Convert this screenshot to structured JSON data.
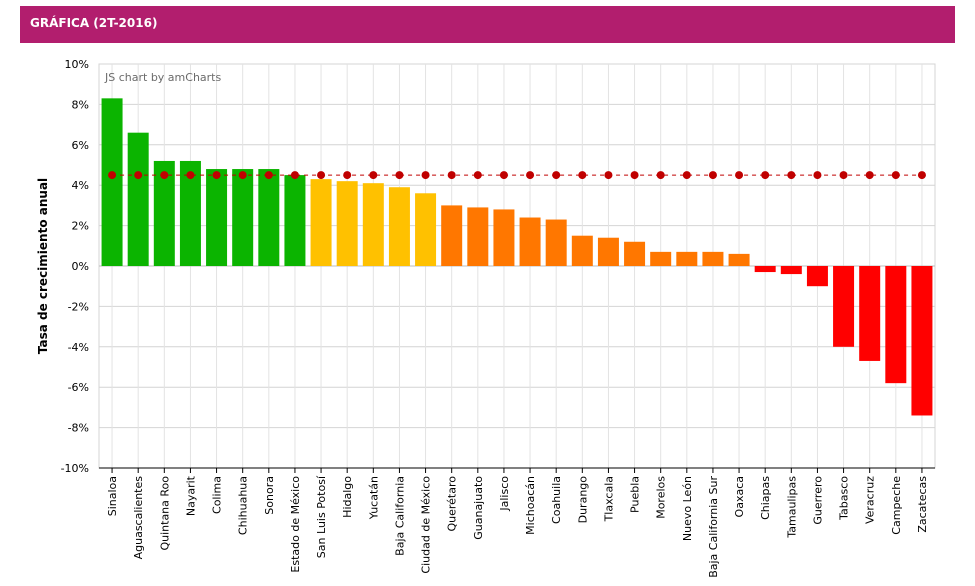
{
  "header": {
    "title": "GRÁFICA (2T-2016)"
  },
  "colors": {
    "header_bg": "#b21e6e",
    "green": "#0bb400",
    "yellow": "#ffc100",
    "orange": "#ff7700",
    "red": "#ff0000",
    "marker": "#c00000"
  },
  "chart_data": {
    "type": "bar",
    "credit": "JS chart by amCharts",
    "ylabel": "Tasa de crecimiento anual",
    "ylim": [
      -10,
      10
    ],
    "y_ticks": [
      "10%",
      "8%",
      "6%",
      "4%",
      "2%",
      "0%",
      "-2%",
      "-4%",
      "-6%",
      "-8%",
      "-10%"
    ],
    "y_tick_values": [
      10,
      8,
      6,
      4,
      2,
      0,
      -2,
      -4,
      -6,
      -8,
      -10
    ],
    "grid": true,
    "categories": [
      "Sinaloa",
      "Aguascalientes",
      "Quintana Roo",
      "Nayarit",
      "Colima",
      "Chihuahua",
      "Sonora",
      "Estado de México",
      "San Luis Potosí",
      "Hidalgo",
      "Yucatán",
      "Baja California",
      "Ciudad de México",
      "Querétaro",
      "Guanajuato",
      "Jalisco",
      "Michoacán",
      "Coahuila",
      "Durango",
      "Tlaxcala",
      "Puebla",
      "Morelos",
      "Nuevo León",
      "Baja California Sur",
      "Oaxaca",
      "Chiapas",
      "Tamaulipas",
      "Guerrero",
      "Tabasco",
      "Veracruz",
      "Campeche",
      "Zacatecas"
    ],
    "series": [
      {
        "type": "bar",
        "values": [
          8.3,
          6.6,
          5.2,
          5.2,
          4.8,
          4.8,
          4.8,
          4.5,
          4.3,
          4.2,
          4.1,
          3.9,
          3.6,
          3.0,
          2.9,
          2.8,
          2.4,
          2.3,
          1.5,
          1.4,
          1.2,
          0.7,
          0.7,
          0.7,
          0.6,
          -0.3,
          -0.4,
          -1.0,
          -4.0,
          -4.7,
          -5.8,
          -7.4
        ],
        "color_groups": [
          "green",
          "green",
          "green",
          "green",
          "green",
          "green",
          "green",
          "green",
          "yellow",
          "yellow",
          "yellow",
          "yellow",
          "yellow",
          "orange",
          "orange",
          "orange",
          "orange",
          "orange",
          "orange",
          "orange",
          "orange",
          "orange",
          "orange",
          "orange",
          "orange",
          "red",
          "red",
          "red",
          "red",
          "red",
          "red",
          "red"
        ]
      },
      {
        "type": "line",
        "style": "dashed-with-dots",
        "color": "#c00000",
        "values": [
          4.5,
          4.5,
          4.5,
          4.5,
          4.5,
          4.5,
          4.5,
          4.5,
          4.5,
          4.5,
          4.5,
          4.5,
          4.5,
          4.5,
          4.5,
          4.5,
          4.5,
          4.5,
          4.5,
          4.5,
          4.5,
          4.5,
          4.5,
          4.5,
          4.5,
          4.5,
          4.5,
          4.5,
          4.5,
          4.5,
          4.5,
          4.5
        ]
      }
    ]
  }
}
